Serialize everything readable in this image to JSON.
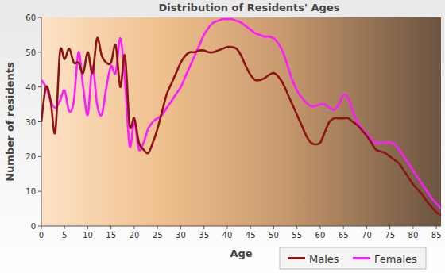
{
  "chart_data": {
    "type": "line",
    "title": "Distribution of Residents' Ages",
    "x_label": "Age",
    "y_label": "Number of residents",
    "x": [
      0,
      1,
      2,
      3,
      4,
      5,
      6,
      7,
      8,
      9,
      10,
      11,
      12,
      13,
      14,
      15,
      16,
      17,
      18,
      19,
      20,
      21,
      22,
      23,
      24,
      25,
      26,
      27,
      28,
      29,
      30,
      31,
      32,
      33,
      34,
      35,
      36,
      37,
      38,
      39,
      40,
      41,
      42,
      43,
      44,
      45,
      46,
      47,
      48,
      49,
      50,
      51,
      52,
      53,
      54,
      55,
      56,
      57,
      58,
      59,
      60,
      61,
      62,
      63,
      64,
      65,
      66,
      67,
      68,
      69,
      70,
      71,
      72,
      73,
      74,
      75,
      76,
      77,
      78,
      79,
      80,
      81,
      82,
      83,
      84,
      85,
      86
    ],
    "series": [
      {
        "name": "Males",
        "color": "#8b1414",
        "values": [
          30,
          40,
          36,
          27,
          50,
          48,
          51,
          47,
          47,
          44,
          50,
          44,
          54,
          49,
          47,
          47,
          52,
          40,
          49,
          29,
          31,
          24,
          22,
          21,
          24,
          28,
          33,
          38,
          41,
          44,
          47,
          49,
          50,
          50,
          50.5,
          50.5,
          50,
          50,
          50.5,
          51,
          51.5,
          51.5,
          51,
          49,
          46,
          43.5,
          42,
          42,
          42.5,
          43.5,
          44,
          43,
          41,
          38,
          35,
          32,
          29,
          26,
          24,
          23.5,
          24,
          27,
          30,
          31,
          31,
          31,
          31,
          30,
          29,
          27.5,
          26,
          24,
          22,
          21.5,
          21,
          20,
          19,
          18,
          16,
          14,
          12,
          10.5,
          9,
          7,
          5.5,
          4,
          3
        ]
      },
      {
        "name": "Females",
        "color": "#ff1aff",
        "values": [
          42,
          40,
          36,
          34,
          36,
          39,
          33,
          36,
          50,
          40,
          32,
          46,
          35,
          32,
          40,
          46,
          44,
          54,
          42,
          23,
          30,
          22,
          24,
          28,
          30,
          31,
          32,
          34,
          36,
          38,
          40,
          43,
          46,
          49,
          52,
          55,
          57,
          58.5,
          59,
          59.5,
          59.5,
          59.5,
          59,
          58.5,
          57.5,
          56.5,
          55.5,
          55,
          54.5,
          54.5,
          54,
          52.5,
          50,
          46,
          42,
          39,
          37,
          35.5,
          34.5,
          34.5,
          35,
          35,
          34,
          33.5,
          35,
          37.5,
          37,
          33,
          30,
          28,
          26.5,
          25,
          24,
          24,
          24,
          24,
          23.5,
          22,
          20,
          18,
          16,
          14,
          12,
          10,
          8,
          6.5,
          5
        ]
      }
    ],
    "xlim": [
      0,
      86
    ],
    "xticks": [
      0,
      5,
      10,
      15,
      20,
      25,
      30,
      35,
      40,
      45,
      50,
      55,
      60,
      65,
      70,
      75,
      80,
      85
    ],
    "ylim": [
      0,
      60
    ],
    "yticks": [
      0,
      10,
      20,
      30,
      40,
      50,
      60
    ],
    "grid": false,
    "legend": "bottom-right"
  }
}
